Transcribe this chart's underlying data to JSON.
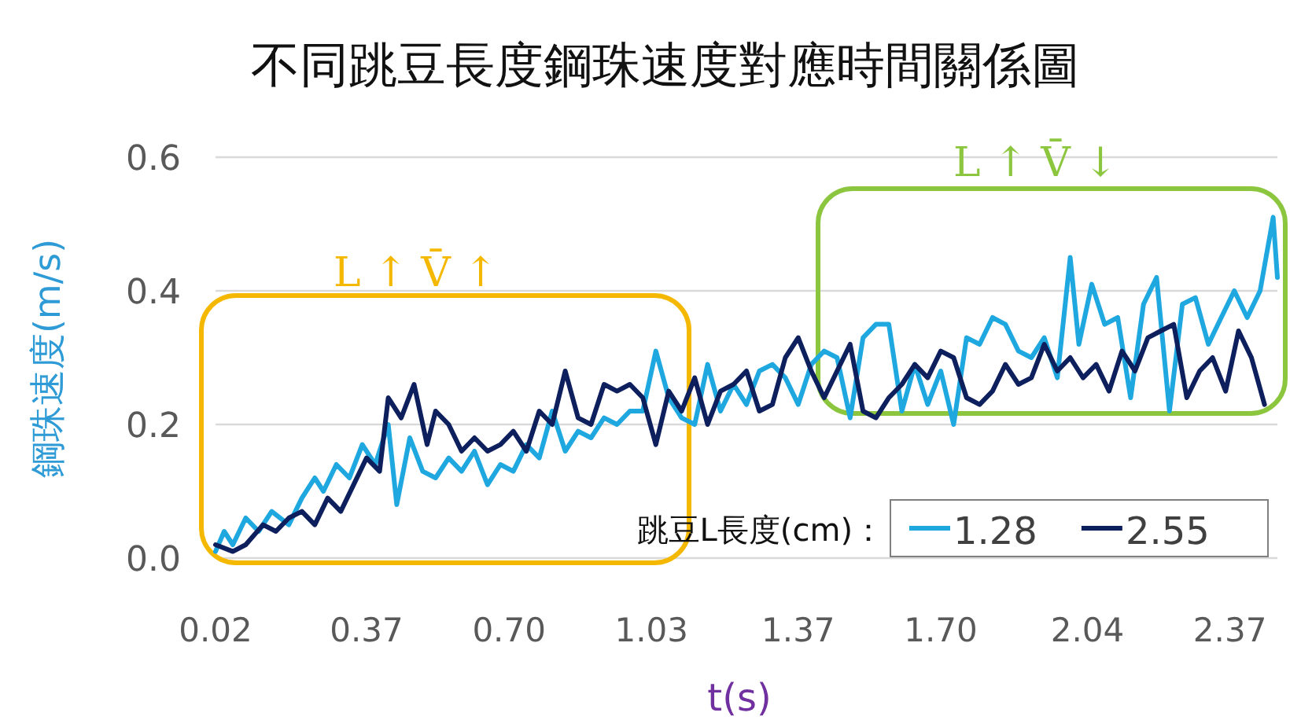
{
  "chart_data": {
    "type": "line",
    "title": "不同跳豆長度鋼珠速度對應時間關係圖",
    "xlabel": "t(s)",
    "ylabel": "鋼珠速度(m/s)",
    "legend_title": "跳豆L長度(cm)：",
    "legend": "bottom right",
    "grid": "y",
    "marker": "none",
    "line_style": "solid",
    "xlim": [
      0.02,
      2.48
    ],
    "xticks": [
      {
        "value": 0.02,
        "label": "0.02"
      },
      {
        "value": 0.37,
        "label": "0.37"
      },
      {
        "value": 0.7,
        "label": "0.70"
      },
      {
        "value": 1.03,
        "label": "1.03"
      },
      {
        "value": 1.37,
        "label": "1.37"
      },
      {
        "value": 1.7,
        "label": "1.70"
      },
      {
        "value": 2.04,
        "label": "2.04"
      },
      {
        "value": 2.37,
        "label": "2.37"
      }
    ],
    "ylim": [
      0,
      0.6
    ],
    "yticks": [
      {
        "value": 0,
        "label": "0.0"
      },
      {
        "value": 0.2,
        "label": "0.2"
      },
      {
        "value": 0.4,
        "label": "0.4"
      },
      {
        "value": 0.6,
        "label": "0.6"
      }
    ],
    "annotations": [
      "L ↑ V̄ ↑",
      "L ↑ V̄ ↓"
    ],
    "series": [
      {
        "name": "1.28",
        "color": "#1fa8e0",
        "x": [
          0.02,
          0.04,
          0.06,
          0.09,
          0.12,
          0.15,
          0.19,
          0.22,
          0.25,
          0.27,
          0.3,
          0.33,
          0.36,
          0.39,
          0.42,
          0.44,
          0.47,
          0.5,
          0.53,
          0.56,
          0.59,
          0.62,
          0.65,
          0.68,
          0.71,
          0.74,
          0.77,
          0.8,
          0.83,
          0.86,
          0.89,
          0.92,
          0.95,
          0.98,
          1.01,
          1.04,
          1.07,
          1.1,
          1.13,
          1.16,
          1.19,
          1.22,
          1.25,
          1.28,
          1.31,
          1.34,
          1.37,
          1.4,
          1.43,
          1.46,
          1.49,
          1.52,
          1.55,
          1.58,
          1.61,
          1.64,
          1.67,
          1.7,
          1.73,
          1.76,
          1.79,
          1.82,
          1.85,
          1.88,
          1.91,
          1.94,
          1.97,
          2.0,
          2.02,
          2.05,
          2.08,
          2.11,
          2.14,
          2.17,
          2.2,
          2.23,
          2.26,
          2.29,
          2.32,
          2.35,
          2.38,
          2.41,
          2.44,
          2.47,
          2.48
        ],
        "values": [
          0.01,
          0.04,
          0.02,
          0.06,
          0.04,
          0.07,
          0.05,
          0.09,
          0.12,
          0.1,
          0.14,
          0.12,
          0.17,
          0.14,
          0.2,
          0.08,
          0.18,
          0.13,
          0.12,
          0.15,
          0.13,
          0.16,
          0.11,
          0.14,
          0.13,
          0.17,
          0.15,
          0.22,
          0.16,
          0.19,
          0.18,
          0.21,
          0.2,
          0.22,
          0.22,
          0.31,
          0.24,
          0.21,
          0.2,
          0.29,
          0.22,
          0.26,
          0.23,
          0.28,
          0.29,
          0.27,
          0.23,
          0.29,
          0.31,
          0.3,
          0.21,
          0.33,
          0.35,
          0.35,
          0.22,
          0.29,
          0.23,
          0.28,
          0.2,
          0.33,
          0.32,
          0.36,
          0.35,
          0.31,
          0.3,
          0.33,
          0.27,
          0.45,
          0.32,
          0.41,
          0.35,
          0.36,
          0.24,
          0.38,
          0.42,
          0.22,
          0.38,
          0.39,
          0.32,
          0.36,
          0.4,
          0.36,
          0.4,
          0.51,
          0.42
        ]
      },
      {
        "name": "2.55",
        "color": "#0d1f5c",
        "x": [
          0.02,
          0.06,
          0.09,
          0.13,
          0.16,
          0.19,
          0.22,
          0.25,
          0.28,
          0.31,
          0.34,
          0.37,
          0.4,
          0.42,
          0.45,
          0.48,
          0.51,
          0.53,
          0.56,
          0.59,
          0.62,
          0.65,
          0.68,
          0.71,
          0.74,
          0.77,
          0.8,
          0.83,
          0.86,
          0.89,
          0.92,
          0.95,
          0.98,
          1.01,
          1.04,
          1.07,
          1.1,
          1.13,
          1.16,
          1.19,
          1.22,
          1.25,
          1.28,
          1.31,
          1.34,
          1.37,
          1.4,
          1.43,
          1.46,
          1.49,
          1.52,
          1.55,
          1.58,
          1.61,
          1.64,
          1.67,
          1.7,
          1.73,
          1.76,
          1.79,
          1.82,
          1.85,
          1.88,
          1.91,
          1.94,
          1.97,
          2.0,
          2.03,
          2.06,
          2.09,
          2.12,
          2.15,
          2.18,
          2.21,
          2.24,
          2.27,
          2.3,
          2.33,
          2.36,
          2.39,
          2.42,
          2.45
        ],
        "values": [
          0.02,
          0.01,
          0.02,
          0.05,
          0.04,
          0.06,
          0.07,
          0.05,
          0.09,
          0.07,
          0.11,
          0.15,
          0.13,
          0.24,
          0.21,
          0.26,
          0.17,
          0.22,
          0.2,
          0.16,
          0.18,
          0.16,
          0.17,
          0.19,
          0.16,
          0.22,
          0.2,
          0.28,
          0.21,
          0.2,
          0.26,
          0.25,
          0.26,
          0.24,
          0.17,
          0.25,
          0.22,
          0.27,
          0.2,
          0.25,
          0.26,
          0.28,
          0.22,
          0.23,
          0.3,
          0.33,
          0.28,
          0.24,
          0.28,
          0.32,
          0.22,
          0.21,
          0.24,
          0.26,
          0.29,
          0.27,
          0.31,
          0.3,
          0.24,
          0.23,
          0.25,
          0.29,
          0.26,
          0.27,
          0.32,
          0.28,
          0.3,
          0.27,
          0.29,
          0.25,
          0.31,
          0.28,
          0.33,
          0.34,
          0.35,
          0.24,
          0.28,
          0.3,
          0.25,
          0.34,
          0.3,
          0.23
        ]
      }
    ]
  }
}
